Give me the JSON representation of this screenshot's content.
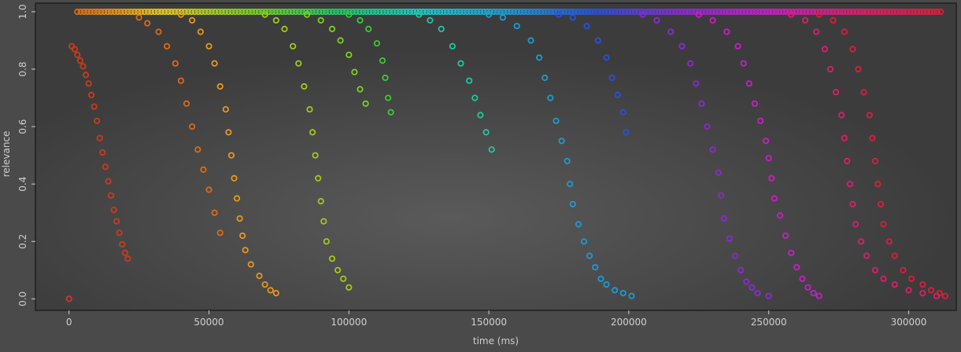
{
  "chart_data": {
    "type": "scatter",
    "title": "",
    "xlabel": "time (ms)",
    "ylabel": "relevance",
    "xlim": [
      -12000,
      317000
    ],
    "ylim": [
      -0.04,
      1.03
    ],
    "x_ticks": [
      0,
      50000,
      100000,
      150000,
      200000,
      250000,
      300000
    ],
    "x_tick_labels": [
      "0",
      "50000",
      "100000",
      "150000",
      "200000",
      "250000",
      "300000"
    ],
    "y_ticks": [
      0.0,
      0.2,
      0.4,
      0.6,
      0.8,
      1.0
    ],
    "y_tick_labels": [
      "0.0",
      "0.2",
      "0.4",
      "0.6",
      "0.8",
      "1.0"
    ],
    "grid": false,
    "legend": "none",
    "marker": "hollow-circle",
    "colors": {
      "plot_background": "#444444",
      "frame": "#1e1e1e",
      "text": "#cfcfcf"
    },
    "series": [
      {
        "color": "#c83c1e",
        "points": [
          [
            1000,
            0.88
          ],
          [
            2000,
            0.87
          ],
          [
            3000,
            0.85
          ],
          [
            4000,
            0.83
          ],
          [
            5000,
            0.81
          ],
          [
            6000,
            0.78
          ],
          [
            7000,
            0.75
          ],
          [
            8000,
            0.71
          ],
          [
            9000,
            0.67
          ],
          [
            10000,
            0.62
          ],
          [
            11000,
            0.56
          ],
          [
            12000,
            0.51
          ],
          [
            13000,
            0.46
          ],
          [
            14000,
            0.41
          ],
          [
            15000,
            0.36
          ],
          [
            16000,
            0.31
          ],
          [
            17000,
            0.27
          ],
          [
            18000,
            0.23
          ],
          [
            19000,
            0.19
          ],
          [
            20000,
            0.16
          ],
          [
            21000,
            0.14
          ]
        ]
      },
      {
        "color": "#dc6a14",
        "points": [
          [
            25000,
            0.98
          ],
          [
            28000,
            0.96
          ],
          [
            32000,
            0.93
          ],
          [
            35000,
            0.88
          ],
          [
            38000,
            0.82
          ],
          [
            40000,
            0.76
          ],
          [
            42000,
            0.68
          ],
          [
            44000,
            0.6
          ],
          [
            46000,
            0.52
          ],
          [
            48000,
            0.45
          ],
          [
            50000,
            0.38
          ],
          [
            52000,
            0.3
          ],
          [
            54000,
            0.23
          ]
        ]
      },
      {
        "color": "#e8961e",
        "points": [
          [
            40000,
            0.99
          ],
          [
            44000,
            0.97
          ],
          [
            47000,
            0.93
          ],
          [
            50000,
            0.88
          ],
          [
            52000,
            0.82
          ],
          [
            54000,
            0.74
          ],
          [
            56000,
            0.66
          ],
          [
            57000,
            0.58
          ],
          [
            58000,
            0.5
          ],
          [
            59000,
            0.42
          ],
          [
            60000,
            0.35
          ],
          [
            61000,
            0.28
          ],
          [
            62000,
            0.22
          ],
          [
            63000,
            0.17
          ],
          [
            65000,
            0.12
          ],
          [
            68000,
            0.08
          ],
          [
            70000,
            0.05
          ],
          [
            72000,
            0.03
          ],
          [
            74000,
            0.02
          ]
        ]
      },
      {
        "color": "#a0c81e",
        "points": [
          [
            70000,
            0.99
          ],
          [
            74000,
            0.97
          ],
          [
            77000,
            0.94
          ],
          [
            80000,
            0.88
          ],
          [
            82000,
            0.82
          ],
          [
            84000,
            0.74
          ],
          [
            86000,
            0.66
          ],
          [
            87000,
            0.58
          ],
          [
            88000,
            0.5
          ],
          [
            89000,
            0.42
          ],
          [
            90000,
            0.34
          ],
          [
            91000,
            0.27
          ],
          [
            92000,
            0.2
          ],
          [
            94000,
            0.14
          ],
          [
            96000,
            0.1
          ],
          [
            98000,
            0.07
          ],
          [
            100000,
            0.04
          ]
        ]
      },
      {
        "color": "#7cd01e",
        "points": [
          [
            85000,
            0.99
          ],
          [
            90000,
            0.97
          ],
          [
            94000,
            0.94
          ],
          [
            97000,
            0.9
          ],
          [
            100000,
            0.85
          ],
          [
            102000,
            0.79
          ],
          [
            104000,
            0.73
          ],
          [
            106000,
            0.68
          ]
        ]
      },
      {
        "color": "#3cc832",
        "points": [
          [
            100000,
            0.99
          ],
          [
            104000,
            0.97
          ],
          [
            107000,
            0.94
          ],
          [
            110000,
            0.89
          ],
          [
            112000,
            0.83
          ],
          [
            113000,
            0.77
          ],
          [
            114000,
            0.7
          ],
          [
            115000,
            0.65
          ]
        ]
      },
      {
        "color": "#1ec8a0",
        "points": [
          [
            125000,
            0.99
          ],
          [
            129000,
            0.97
          ],
          [
            133000,
            0.94
          ],
          [
            137000,
            0.88
          ],
          [
            140000,
            0.82
          ],
          [
            143000,
            0.76
          ],
          [
            145000,
            0.7
          ],
          [
            147000,
            0.64
          ],
          [
            149000,
            0.58
          ],
          [
            151000,
            0.52
          ]
        ]
      },
      {
        "color": "#1e9ad2",
        "points": [
          [
            150000,
            0.99
          ],
          [
            155000,
            0.98
          ],
          [
            160000,
            0.95
          ],
          [
            165000,
            0.9
          ],
          [
            168000,
            0.84
          ],
          [
            170000,
            0.77
          ],
          [
            172000,
            0.7
          ],
          [
            174000,
            0.62
          ],
          [
            176000,
            0.55
          ],
          [
            178000,
            0.48
          ],
          [
            179000,
            0.4
          ],
          [
            180000,
            0.33
          ],
          [
            182000,
            0.26
          ],
          [
            184000,
            0.2
          ],
          [
            186000,
            0.15
          ],
          [
            188000,
            0.11
          ],
          [
            190000,
            0.07
          ],
          [
            192000,
            0.05
          ],
          [
            195000,
            0.03
          ],
          [
            198000,
            0.02
          ],
          [
            201000,
            0.01
          ]
        ]
      },
      {
        "color": "#2a50dc",
        "points": [
          [
            175000,
            0.99
          ],
          [
            180000,
            0.98
          ],
          [
            185000,
            0.95
          ],
          [
            189000,
            0.9
          ],
          [
            192000,
            0.84
          ],
          [
            194000,
            0.77
          ],
          [
            196000,
            0.71
          ],
          [
            198000,
            0.65
          ],
          [
            199000,
            0.58
          ]
        ]
      },
      {
        "color": "#8c2ad2",
        "points": [
          [
            205000,
            0.99
          ],
          [
            210000,
            0.97
          ],
          [
            215000,
            0.93
          ],
          [
            219000,
            0.88
          ],
          [
            222000,
            0.82
          ],
          [
            224000,
            0.75
          ],
          [
            226000,
            0.68
          ],
          [
            228000,
            0.6
          ],
          [
            230000,
            0.52
          ],
          [
            232000,
            0.44
          ],
          [
            233000,
            0.36
          ],
          [
            234000,
            0.28
          ],
          [
            236000,
            0.21
          ],
          [
            238000,
            0.15
          ],
          [
            240000,
            0.1
          ],
          [
            242000,
            0.06
          ],
          [
            244000,
            0.04
          ],
          [
            246000,
            0.02
          ],
          [
            250000,
            0.01
          ]
        ]
      },
      {
        "color": "#c81ec8",
        "points": [
          [
            225000,
            0.99
          ],
          [
            230000,
            0.97
          ],
          [
            235000,
            0.93
          ],
          [
            239000,
            0.88
          ],
          [
            241000,
            0.82
          ],
          [
            243000,
            0.75
          ],
          [
            245000,
            0.68
          ],
          [
            247000,
            0.62
          ],
          [
            249000,
            0.55
          ],
          [
            250000,
            0.49
          ],
          [
            251000,
            0.42
          ],
          [
            252000,
            0.35
          ],
          [
            254000,
            0.29
          ],
          [
            256000,
            0.22
          ],
          [
            258000,
            0.16
          ],
          [
            260000,
            0.11
          ],
          [
            262000,
            0.07
          ],
          [
            264000,
            0.04
          ],
          [
            266000,
            0.02
          ],
          [
            268000,
            0.01
          ]
        ]
      },
      {
        "color": "#dc1e6e",
        "points": [
          [
            258000,
            0.99
          ],
          [
            263000,
            0.97
          ],
          [
            267000,
            0.93
          ],
          [
            270000,
            0.87
          ],
          [
            272000,
            0.8
          ],
          [
            274000,
            0.72
          ],
          [
            276000,
            0.64
          ],
          [
            277000,
            0.56
          ],
          [
            278000,
            0.48
          ],
          [
            279000,
            0.4
          ],
          [
            280000,
            0.33
          ],
          [
            281000,
            0.26
          ],
          [
            283000,
            0.2
          ],
          [
            285000,
            0.15
          ],
          [
            288000,
            0.1
          ],
          [
            291000,
            0.07
          ],
          [
            295000,
            0.05
          ],
          [
            300000,
            0.03
          ],
          [
            305000,
            0.02
          ],
          [
            310000,
            0.01
          ]
        ]
      },
      {
        "color": "#dc1e3c",
        "points": [
          [
            268000,
            0.99
          ],
          [
            273000,
            0.97
          ],
          [
            277000,
            0.93
          ],
          [
            280000,
            0.87
          ],
          [
            282000,
            0.8
          ],
          [
            284000,
            0.72
          ],
          [
            286000,
            0.64
          ],
          [
            287000,
            0.56
          ],
          [
            288000,
            0.48
          ],
          [
            289000,
            0.4
          ],
          [
            290000,
            0.33
          ],
          [
            291000,
            0.26
          ],
          [
            293000,
            0.2
          ],
          [
            295000,
            0.15
          ],
          [
            298000,
            0.1
          ],
          [
            301000,
            0.07
          ],
          [
            305000,
            0.05
          ],
          [
            308000,
            0.03
          ],
          [
            311000,
            0.02
          ],
          [
            313000,
            0.01
          ]
        ]
      },
      {
        "color": "#c83c1e",
        "points": [
          [
            0,
            0.0
          ]
        ]
      }
    ],
    "top_band": {
      "x_start": 3000,
      "x_end": 312000,
      "y": 1.0,
      "color_scale": [
        "#dc6a14",
        "#e8c81e",
        "#7cd01e",
        "#1ec864",
        "#1ec8c8",
        "#1e9ad2",
        "#2a50dc",
        "#8c2ad2",
        "#c81ec8",
        "#dc1e6e",
        "#dc1e3c"
      ]
    }
  }
}
